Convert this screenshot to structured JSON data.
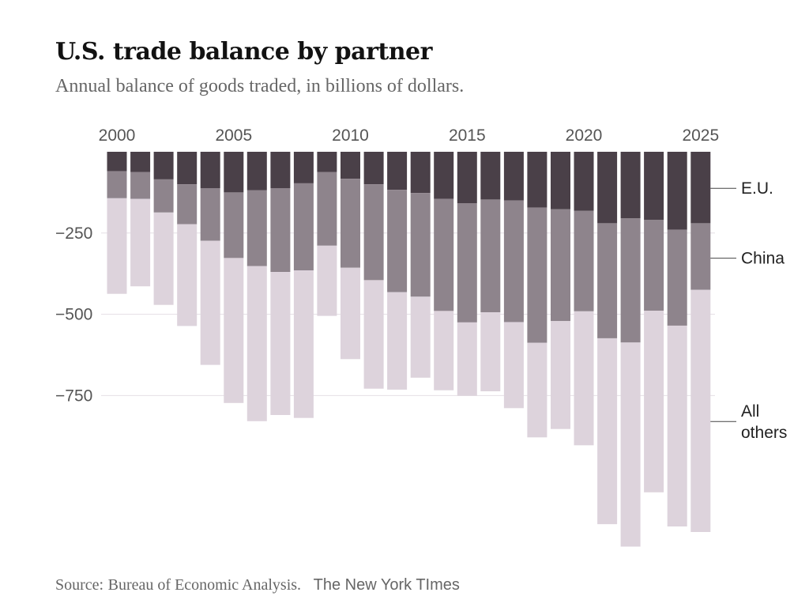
{
  "chart_data": {
    "type": "bar",
    "stacked": true,
    "title": "U.S. trade balance by partner",
    "subtitle": "Annual balance of goods traded, in billions of dollars.",
    "xlabel": "",
    "ylabel": "",
    "ylim": [
      -1250,
      0
    ],
    "yticks": [
      -250,
      -500,
      -750
    ],
    "ytick_labels": [
      "−250",
      "−500",
      "−750"
    ],
    "xtick_years": [
      2000,
      2005,
      2010,
      2015,
      2020,
      2025
    ],
    "xtick_labels": [
      "2000",
      "2005",
      "2010",
      "2015",
      "2020",
      "2025"
    ],
    "categories": [
      "2000",
      "2001",
      "2002",
      "2003",
      "2004",
      "2005",
      "2006",
      "2007",
      "2008",
      "2009",
      "2010",
      "2011",
      "2012",
      "2013",
      "2014",
      "2015",
      "2016",
      "2017",
      "2018",
      "2019",
      "2020",
      "2021",
      "2022",
      "2023",
      "2024",
      "2025"
    ],
    "series": [
      {
        "name": "E.U.",
        "color": "#4a4048",
        "values": [
          -60,
          -62,
          -85,
          -100,
          -112,
          -125,
          -118,
          -112,
          -97,
          -62,
          -83,
          -100,
          -117,
          -127,
          -145,
          -158,
          -147,
          -150,
          -172,
          -177,
          -182,
          -220,
          -205,
          -210,
          -240,
          -220
        ]
      },
      {
        "name": "China",
        "color": "#8e848c",
        "values": [
          -83,
          -83,
          -102,
          -123,
          -162,
          -202,
          -234,
          -258,
          -268,
          -227,
          -274,
          -295,
          -315,
          -319,
          -345,
          -367,
          -347,
          -374,
          -416,
          -344,
          -309,
          -354,
          -382,
          -279,
          -295,
          -205
        ]
      },
      {
        "name": "All others",
        "color": "#ddd3dc",
        "values": [
          -294,
          -269,
          -284,
          -313,
          -382,
          -446,
          -477,
          -440,
          -454,
          -216,
          -281,
          -334,
          -300,
          -249,
          -244,
          -226,
          -243,
          -265,
          -291,
          -332,
          -412,
          -572,
          -628,
          -559,
          -618,
          -745
        ]
      }
    ],
    "series_labels": [
      "E.U.",
      "China",
      "All",
      "others"
    ]
  },
  "source": {
    "prefix": "Source:",
    "text": "Bureau of Economic Analysis.",
    "credit": "The New York TImes"
  }
}
